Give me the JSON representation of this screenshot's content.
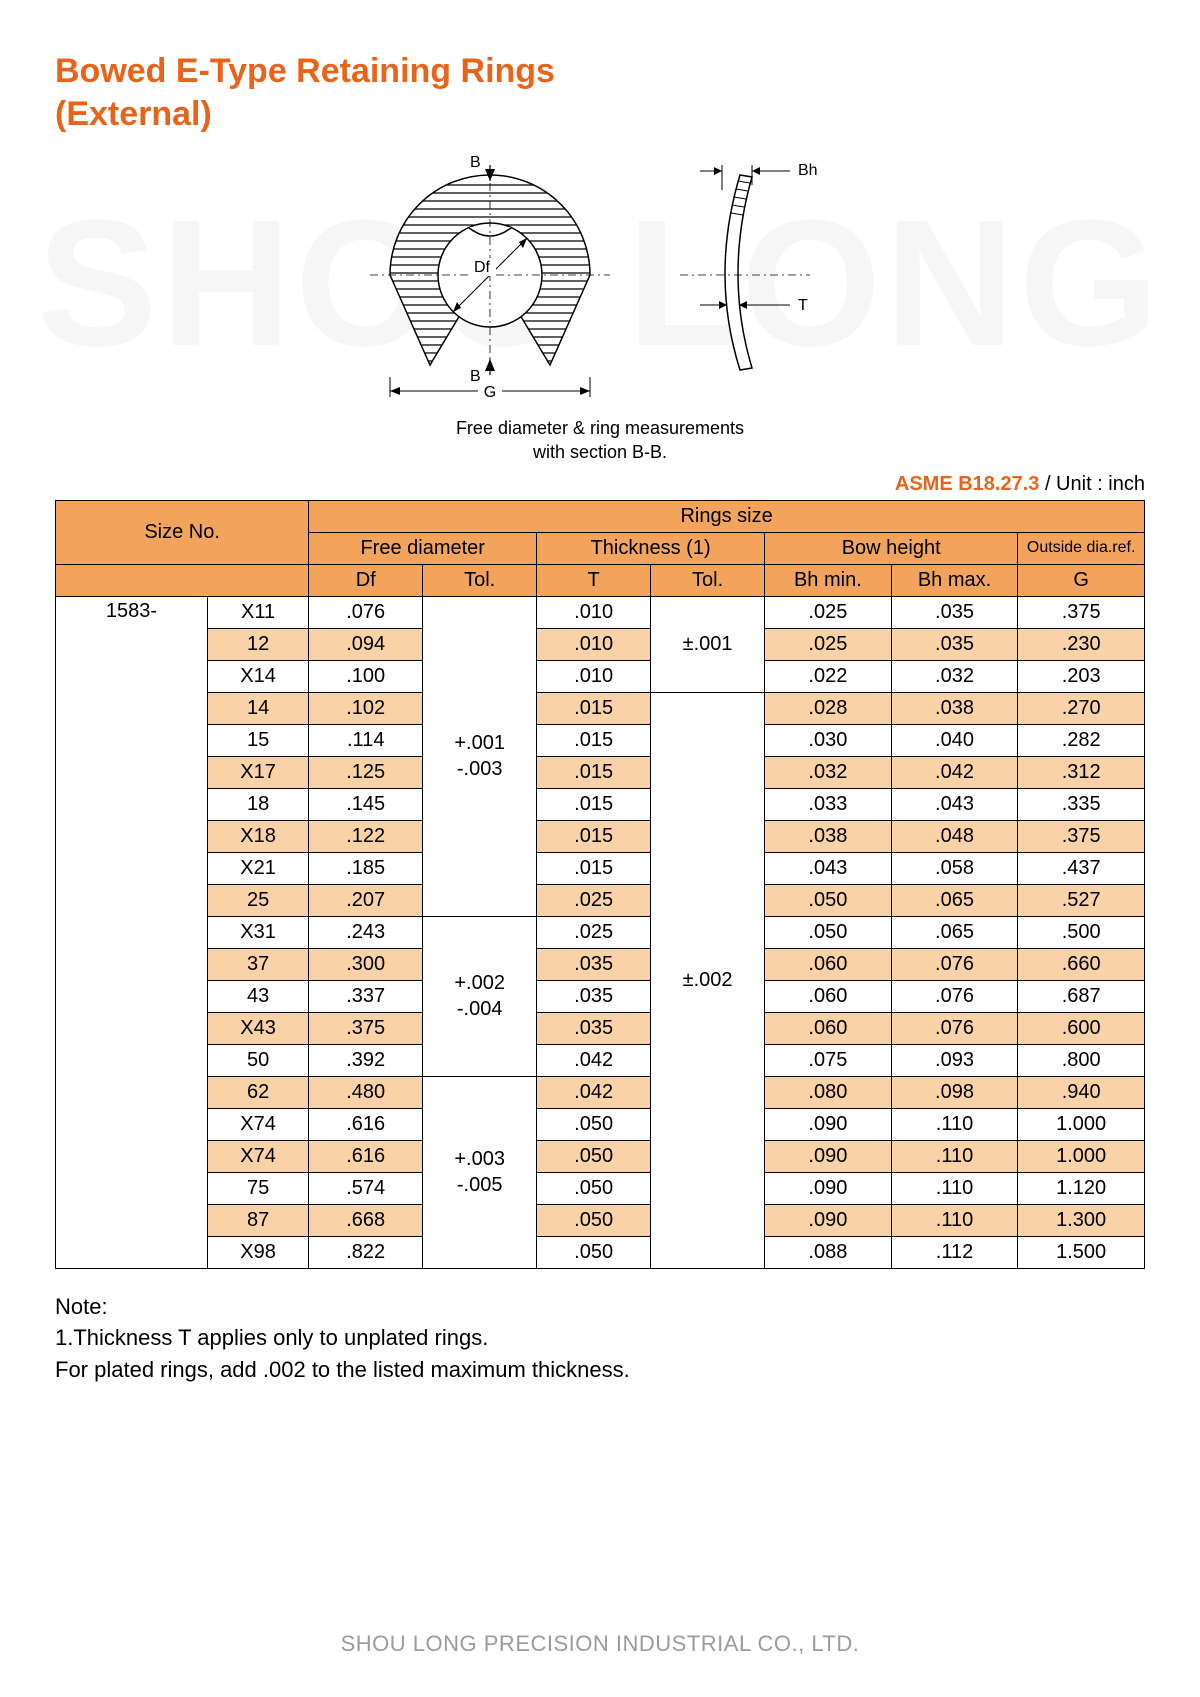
{
  "watermark": "SHOU LONG",
  "title_line1": "Bowed E-Type Retaining Rings",
  "title_line2": "(External)",
  "diagram": {
    "labels": {
      "B": "B",
      "Bh": "Bh",
      "Df": "Df",
      "T": "T",
      "G": "G"
    },
    "caption_l1": "Free diameter & ring measurements",
    "caption_l2": "with section B-B."
  },
  "spec": {
    "code": "ASME B18.27.3",
    "unit": " / Unit : inch"
  },
  "headers": {
    "size_no": "Size No.",
    "rings_size": "Rings size",
    "free_diameter": "Free diameter",
    "thickness": "Thickness (1)",
    "bow_height": "Bow height",
    "outside": "Outside dia.ref.",
    "Df": "Df",
    "Tol": "Tol.",
    "T": "T",
    "Bh_min": "Bh min.",
    "Bh_max": "Bh max.",
    "G": "G"
  },
  "series": "1583-",
  "tol_groups": {
    "df1": "+.001\n-.003",
    "df2": "+.002\n-.004",
    "df3": "+.003\n-.005",
    "t1": "±.001",
    "t2": "±.002"
  },
  "rows": [
    {
      "no": "X11",
      "df": ".076",
      "t": ".010",
      "bhmin": ".025",
      "bhmax": ".035",
      "g": ".375",
      "alt": false
    },
    {
      "no": "12",
      "df": ".094",
      "t": ".010",
      "bhmin": ".025",
      "bhmax": ".035",
      "g": ".230",
      "alt": true
    },
    {
      "no": "X14",
      "df": ".100",
      "t": ".010",
      "bhmin": ".022",
      "bhmax": ".032",
      "g": ".203",
      "alt": false
    },
    {
      "no": "14",
      "df": ".102",
      "t": ".015",
      "bhmin": ".028",
      "bhmax": ".038",
      "g": ".270",
      "alt": true
    },
    {
      "no": "15",
      "df": ".114",
      "t": ".015",
      "bhmin": ".030",
      "bhmax": ".040",
      "g": ".282",
      "alt": false
    },
    {
      "no": "X17",
      "df": ".125",
      "t": ".015",
      "bhmin": ".032",
      "bhmax": ".042",
      "g": ".312",
      "alt": true
    },
    {
      "no": "18",
      "df": ".145",
      "t": ".015",
      "bhmin": ".033",
      "bhmax": ".043",
      "g": ".335",
      "alt": false
    },
    {
      "no": "X18",
      "df": ".122",
      "t": ".015",
      "bhmin": ".038",
      "bhmax": ".048",
      "g": ".375",
      "alt": true
    },
    {
      "no": "X21",
      "df": ".185",
      "t": ".015",
      "bhmin": ".043",
      "bhmax": ".058",
      "g": ".437",
      "alt": false
    },
    {
      "no": "25",
      "df": ".207",
      "t": ".025",
      "bhmin": ".050",
      "bhmax": ".065",
      "g": ".527",
      "alt": true
    },
    {
      "no": "X31",
      "df": ".243",
      "t": ".025",
      "bhmin": ".050",
      "bhmax": ".065",
      "g": ".500",
      "alt": false
    },
    {
      "no": "37",
      "df": ".300",
      "t": ".035",
      "bhmin": ".060",
      "bhmax": ".076",
      "g": ".660",
      "alt": true
    },
    {
      "no": "43",
      "df": ".337",
      "t": ".035",
      "bhmin": ".060",
      "bhmax": ".076",
      "g": ".687",
      "alt": false
    },
    {
      "no": "X43",
      "df": ".375",
      "t": ".035",
      "bhmin": ".060",
      "bhmax": ".076",
      "g": ".600",
      "alt": true
    },
    {
      "no": "50",
      "df": ".392",
      "t": ".042",
      "bhmin": ".075",
      "bhmax": ".093",
      "g": ".800",
      "alt": false
    },
    {
      "no": "62",
      "df": ".480",
      "t": ".042",
      "bhmin": ".080",
      "bhmax": ".098",
      "g": ".940",
      "alt": true
    },
    {
      "no": "X74",
      "df": ".616",
      "t": ".050",
      "bhmin": ".090",
      "bhmax": ".110",
      "g": "1.000",
      "alt": false
    },
    {
      "no": "X74",
      "df": ".616",
      "t": ".050",
      "bhmin": ".090",
      "bhmax": ".110",
      "g": "1.000",
      "alt": true
    },
    {
      "no": "75",
      "df": ".574",
      "t": ".050",
      "bhmin": ".090",
      "bhmax": ".110",
      "g": "1.120",
      "alt": false
    },
    {
      "no": "87",
      "df": ".668",
      "t": ".050",
      "bhmin": ".090",
      "bhmax": ".110",
      "g": "1.300",
      "alt": true
    },
    {
      "no": "X98",
      "df": ".822",
      "t": ".050",
      "bhmin": ".088",
      "bhmax": ".112",
      "g": "1.500",
      "alt": false
    }
  ],
  "note": {
    "heading": "Note:",
    "l1": "1.Thickness T applies only to unplated rings.",
    "l2": "For plated rings, add .002 to the listed maximum thickness."
  },
  "footer": "SHOU LONG PRECISION INDUSTRIAL CO., LTD.",
  "colors": {
    "accent": "#e8641b",
    "header_bg": "#f2a45c",
    "alt_bg": "#f9d2a7",
    "border": "#000000",
    "watermark": "#f6f6f6",
    "footer": "#9b9b9b"
  }
}
